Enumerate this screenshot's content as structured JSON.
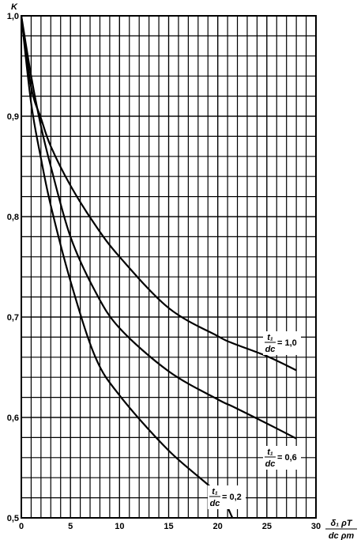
{
  "chart_data": {
    "type": "line",
    "y_label": "K",
    "x_label": {
      "numerator": "δ₁  ρT",
      "denominator": "dc  ρm"
    },
    "series_label": {
      "numerator": "t₁",
      "denominator": "dc"
    },
    "x": [
      0,
      1,
      2,
      3,
      5,
      7.5,
      10,
      15,
      20,
      21.5,
      25,
      28
    ],
    "series": [
      {
        "name": "= 1,0",
        "color": "#000000",
        "values": [
          1.0,
          0.929,
          0.898,
          0.87,
          0.831,
          0.792,
          0.76,
          0.709,
          0.681,
          0.674,
          0.661,
          0.647
        ]
      },
      {
        "name": "= 0,6",
        "color": "#000000",
        "values": [
          1.0,
          0.94,
          0.89,
          0.85,
          0.78,
          0.726,
          0.689,
          0.646,
          0.618,
          0.611,
          0.594,
          0.579
        ]
      },
      {
        "name": "= 0,2",
        "color": "#000000",
        "values": [
          1.0,
          0.913,
          0.858,
          0.811,
          0.736,
          0.661,
          0.622,
          0.567,
          0.524,
          0.5,
          null,
          null
        ]
      }
    ],
    "xlim": [
      0,
      30
    ],
    "ylim": [
      0.5,
      1.0
    ],
    "xticks": [
      0,
      5,
      10,
      15,
      20,
      25,
      30
    ],
    "yticks": [
      {
        "value": 0.5,
        "label": "0,5"
      },
      {
        "value": 0.6,
        "label": "0,6"
      },
      {
        "value": 0.7,
        "label": "0,7"
      },
      {
        "value": 0.8,
        "label": "0,8"
      },
      {
        "value": 0.9,
        "label": "0,9"
      },
      {
        "value": 1.0,
        "label": "1,0"
      }
    ],
    "grid": true,
    "x_grid_step": 1,
    "y_grid_step": 0.02
  }
}
